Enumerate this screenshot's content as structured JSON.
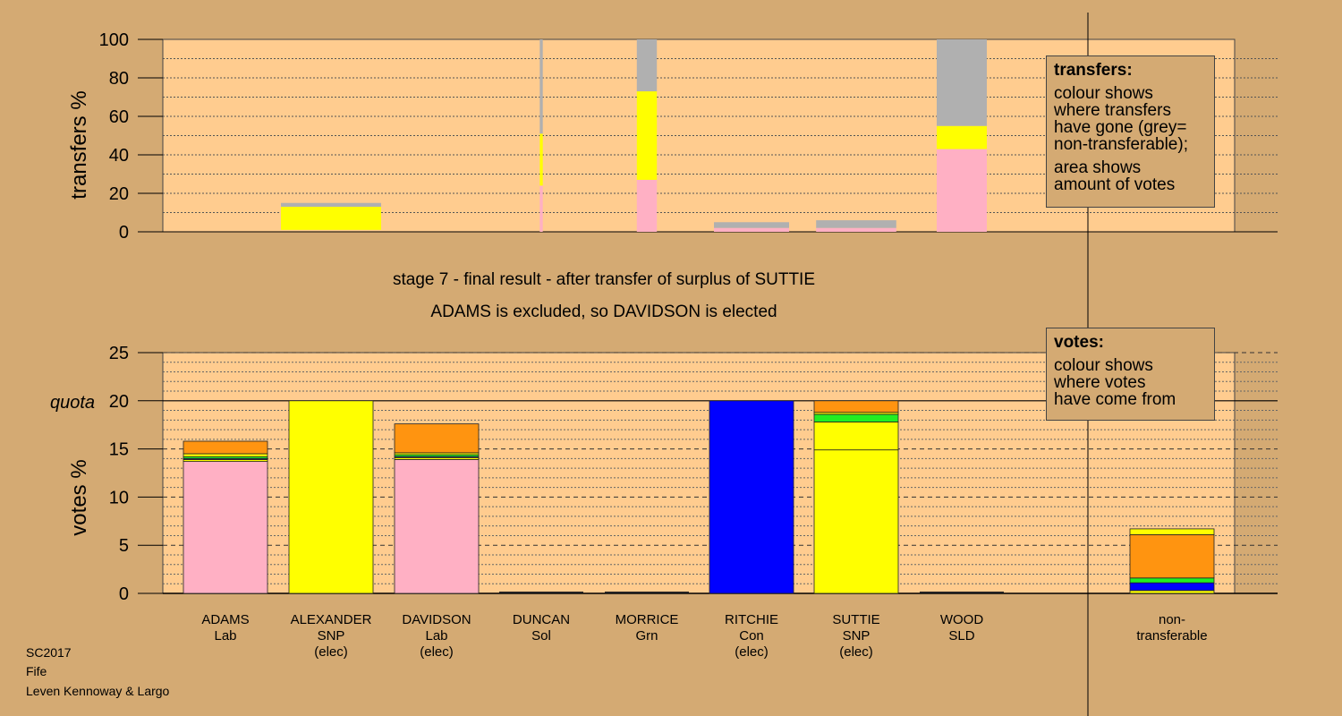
{
  "captions": {
    "stage": "stage 7 - final result - after transfer of surplus of SUTTIE",
    "outcome": "ADAMS is excluded, so DAVIDSON is elected"
  },
  "footer": {
    "line1": "SC2017",
    "line2": "Fife",
    "line3": "Leven Kennoway & Largo"
  },
  "legend_transfers": {
    "title": "transfers:",
    "lines1": [
      "colour shows",
      "where transfers",
      "have gone (grey=",
      "non-transferable);"
    ],
    "lines2": [
      "area shows",
      "amount of votes"
    ]
  },
  "legend_votes": {
    "title": "votes:",
    "lines": [
      "colour shows",
      "where votes",
      "have come from"
    ]
  },
  "colors": {
    "background": "#d4aa73",
    "plot": "#ffcc8f",
    "Lab": "#ffb0c4",
    "SNP": "#ffff00",
    "Con": "#0000ff",
    "Grn": "#22ee22",
    "Sol": "#ff0000",
    "SLD": "#ff9410",
    "grey": "#b0b0b0"
  },
  "chart_data": [
    {
      "type": "bar",
      "title": "",
      "ylabel": "transfers %",
      "ylim": [
        0,
        100
      ],
      "yticks": [
        0,
        20,
        40,
        60,
        80,
        100
      ],
      "grid": "dotted every 10",
      "bars": [
        {
          "candidate": "ALEXANDER",
          "width_fraction": 1.0,
          "segments": [
            {
              "party": "SNP",
              "from": 1,
              "to": 13
            },
            {
              "party": "grey",
              "from": 13,
              "to": 15
            }
          ]
        },
        {
          "candidate": "DUNCAN",
          "width_fraction": 0.03,
          "segments": [
            {
              "party": "Lab",
              "from": 0,
              "to": 24
            },
            {
              "party": "SNP",
              "from": 24,
              "to": 51
            },
            {
              "party": "grey",
              "from": 51,
              "to": 100
            }
          ]
        },
        {
          "candidate": "MORRICE",
          "width_fraction": 0.2,
          "segments": [
            {
              "party": "Lab",
              "from": 0,
              "to": 27
            },
            {
              "party": "SNP",
              "from": 27,
              "to": 73
            },
            {
              "party": "grey",
              "from": 73,
              "to": 100
            }
          ]
        },
        {
          "candidate": "RITCHIE",
          "width_fraction": 0.75,
          "segments": [
            {
              "party": "Lab",
              "from": 0,
              "to": 2
            },
            {
              "party": "grey",
              "from": 2,
              "to": 5
            }
          ]
        },
        {
          "candidate": "SUTTIE",
          "width_fraction": 0.8,
          "segments": [
            {
              "party": "Lab",
              "from": 0,
              "to": 2
            },
            {
              "party": "grey",
              "from": 2,
              "to": 6
            }
          ]
        },
        {
          "candidate": "WOOD",
          "width_fraction": 0.5,
          "segments": [
            {
              "party": "Lab",
              "from": 0,
              "to": 43
            },
            {
              "party": "SNP",
              "from": 43,
              "to": 55
            },
            {
              "party": "grey",
              "from": 55,
              "to": 100
            }
          ]
        }
      ]
    },
    {
      "type": "bar",
      "title": "",
      "ylabel": "votes %",
      "ylim": [
        0,
        25
      ],
      "yticks": [
        0,
        5,
        10,
        15,
        20,
        25
      ],
      "quota": 20,
      "quota_label": "quota",
      "categories": [
        {
          "name": "ADAMS",
          "party": "Lab",
          "note": ""
        },
        {
          "name": "ALEXANDER",
          "party": "SNP",
          "note": "(elec)"
        },
        {
          "name": "DAVIDSON",
          "party": "Lab",
          "note": "(elec)"
        },
        {
          "name": "DUNCAN",
          "party": "Sol",
          "note": ""
        },
        {
          "name": "MORRICE",
          "party": "Grn",
          "note": ""
        },
        {
          "name": "RITCHIE",
          "party": "Con",
          "note": "(elec)"
        },
        {
          "name": "SUTTIE",
          "party": "SNP",
          "note": "(elec)"
        },
        {
          "name": "WOOD",
          "party": "SLD",
          "note": ""
        }
      ],
      "nontransferable_label": [
        "non-",
        "transferable"
      ],
      "stacks": [
        [
          {
            "party": "Lab",
            "value": 13.7
          },
          {
            "party": "SNP",
            "value": 0.2
          },
          {
            "party": "Con",
            "value": 0.1
          },
          {
            "party": "Grn",
            "value": 0.2
          },
          {
            "party": "SNP",
            "value": 0.3
          },
          {
            "party": "SLD",
            "value": 1.3
          }
        ],
        [
          {
            "party": "SNP",
            "value": 20.0
          }
        ],
        [
          {
            "party": "Lab",
            "value": 13.9
          },
          {
            "party": "SNP",
            "value": 0.2
          },
          {
            "party": "Con",
            "value": 0.1
          },
          {
            "party": "Grn",
            "value": 0.2
          },
          {
            "party": "SNP",
            "value": 0.2
          },
          {
            "party": "SLD",
            "value": 3.0
          }
        ],
        [],
        [],
        [
          {
            "party": "Con",
            "value": 20.0
          }
        ],
        [
          {
            "party": "SNP",
            "value": 14.9
          },
          {
            "party": "SNP",
            "value": 2.9
          },
          {
            "party": "Grn",
            "value": 0.8
          },
          {
            "party": "SNP",
            "value": 0.2
          },
          {
            "party": "SLD",
            "value": 1.2
          }
        ],
        []
      ],
      "nontransferable_stack": [
        {
          "party": "SNP",
          "value": 0.3
        },
        {
          "party": "Con",
          "value": 0.8
        },
        {
          "party": "Grn",
          "value": 0.5
        },
        {
          "party": "SLD",
          "value": 4.5
        },
        {
          "party": "SNP",
          "value": 0.6
        }
      ]
    }
  ]
}
